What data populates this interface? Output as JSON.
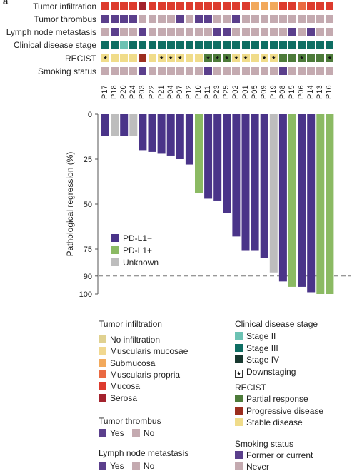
{
  "panel": {
    "letter": "a"
  },
  "colors": {
    "no_infiltration": "#e0d190",
    "muscularis_mucosae": "#f1d890",
    "submucosa": "#f2a95c",
    "muscularis_propria": "#ea6a42",
    "mucosa": "#dd3b2e",
    "serosa": "#a3222d",
    "yes": "#5b3f8c",
    "no": "#c4aab0",
    "stage_ii": "#6cc2b3",
    "stage_iii": "#0e6e63",
    "stage_iv": "#17382f",
    "partial_response": "#4d7b3a",
    "progressive_disease": "#9c2e1f",
    "stable_disease": "#f0dc8a",
    "former_or_current": "#5b3f8c",
    "never": "#c4aab0",
    "pdl1_neg": "#4a3489",
    "pdl1_pos": "#8bba63",
    "unknown": "#bdbdbd"
  },
  "heatmap": {
    "row_labels": [
      "Tumor infiltration",
      "Tumor thrombus",
      "Lymph node metastasis",
      "Clinical disease stage",
      "RECIST",
      "Smoking status"
    ],
    "patients": [
      "P17",
      "P18",
      "P20",
      "P24",
      "P03",
      "P22",
      "P21",
      "P04",
      "P07",
      "P12",
      "P10",
      "P11",
      "P23",
      "P25",
      "P02",
      "P01",
      "P05",
      "P09",
      "P19",
      "P08",
      "P15",
      "P06",
      "P14",
      "P13",
      "P16"
    ],
    "rows": [
      [
        "mucosa",
        "mucosa",
        "mucosa",
        "mucosa",
        "serosa",
        "mucosa",
        "mucosa",
        "mucosa",
        "mucosa",
        "mucosa",
        "mucosa",
        "mucosa",
        "mucosa",
        "mucosa",
        "mucosa",
        "mucosa",
        "submucosa",
        "submucosa",
        "submucosa",
        "mucosa",
        "mucosa",
        "muscularis_propria",
        "mucosa",
        "mucosa",
        "mucosa"
      ],
      [
        "yes",
        "yes",
        "yes",
        "yes",
        "no",
        "no",
        "no",
        "no",
        "yes",
        "no",
        "yes",
        "yes",
        "no",
        "no",
        "yes",
        "no",
        "no",
        "no",
        "no",
        "no",
        "no",
        "no",
        "no",
        "no",
        "no"
      ],
      [
        "no",
        "yes",
        "no",
        "no",
        "yes",
        "no",
        "no",
        "no",
        "no",
        "no",
        "no",
        "no",
        "yes",
        "yes",
        "no",
        "no",
        "no",
        "no",
        "no",
        "no",
        "yes",
        "no",
        "yes",
        "no",
        "no"
      ],
      [
        "stage_iii",
        "stage_iii",
        "stage_ii",
        "stage_iii",
        "stage_iii",
        "stage_iii",
        "stage_iii",
        "stage_iii",
        "stage_iii",
        "stage_iii",
        "stage_iii",
        "stage_iii",
        "stage_iii",
        "stage_iii",
        "stage_iii",
        "stage_iii",
        "stage_iii",
        "stage_iii",
        "stage_iii",
        "stage_iii",
        "stage_iii",
        "stage_iii",
        "stage_iii",
        "stage_iii",
        "stage_iii"
      ],
      [
        "stable_disease",
        "stable_disease",
        "stable_disease",
        "stable_disease",
        "progressive_disease",
        "stable_disease",
        "stable_disease",
        "stable_disease",
        "stable_disease",
        "stable_disease",
        "stable_disease",
        "partial_response",
        "partial_response",
        "partial_response",
        "stable_disease",
        "stable_disease",
        "stable_disease",
        "stable_disease",
        "stable_disease",
        "partial_response",
        "partial_response",
        "partial_response",
        "partial_response",
        "partial_response",
        "partial_response"
      ],
      [
        "no",
        "no",
        "no",
        "no",
        "former_or_current",
        "no",
        "no",
        "no",
        "no",
        "no",
        "no",
        "former_or_current",
        "no",
        "no",
        "no",
        "no",
        "no",
        "no",
        "no",
        "former_or_current",
        "no",
        "no",
        "no",
        "no",
        "no"
      ]
    ],
    "downstaging": [
      true,
      false,
      false,
      false,
      false,
      false,
      true,
      true,
      true,
      false,
      false,
      true,
      true,
      true,
      true,
      true,
      false,
      true,
      true,
      false,
      false,
      true,
      false,
      false,
      true
    ]
  },
  "chart_data": {
    "type": "bar",
    "categories": [
      "P17",
      "P18",
      "P20",
      "P24",
      "P03",
      "P22",
      "P21",
      "P04",
      "P07",
      "P12",
      "P10",
      "P11",
      "P23",
      "P25",
      "P02",
      "P01",
      "P05",
      "P09",
      "P19",
      "P08",
      "P15",
      "P06",
      "P14",
      "P13",
      "P16"
    ],
    "values": [
      12,
      12,
      12,
      12,
      20,
      21,
      22,
      23,
      25,
      28,
      44,
      47,
      48,
      55,
      68,
      76,
      76,
      80,
      88,
      93,
      96,
      96,
      99,
      100,
      100
    ],
    "pdl1": [
      "neg",
      "unknown",
      "neg",
      "unknown",
      "neg",
      "neg",
      "neg",
      "neg",
      "neg",
      "neg",
      "pos",
      "neg",
      "neg",
      "neg",
      "neg",
      "neg",
      "neg",
      "neg",
      "unknown",
      "neg",
      "pos",
      "neg",
      "neg",
      "pos",
      "pos"
    ],
    "ylabel": "Pathological regression (%)",
    "ylim": [
      0,
      100
    ],
    "yticks": [
      0,
      25,
      50,
      75,
      90,
      100
    ],
    "reference_line": 90,
    "y_inverted": true,
    "legend": [
      "PD-L1−",
      "PD-L1+",
      "Unknown"
    ],
    "legend_placement": "bottom-left"
  },
  "legend": {
    "tumor_infiltration": {
      "title": "Tumor infiltration",
      "items": [
        "No infiltration",
        "Muscularis mucosae",
        "Submucosa",
        "Muscularis propria",
        "Mucosa",
        "Serosa"
      ]
    },
    "tumor_thrombus": {
      "title": "Tumor thrombus",
      "yes": "Yes",
      "no": "No"
    },
    "lymph_node": {
      "title": "Lymph node metastasis",
      "yes": "Yes",
      "no": "No"
    },
    "clinical_stage": {
      "title": "Clinical disease stage",
      "items": [
        "Stage II",
        "Stage III",
        "Stage IV",
        "Downstaging"
      ]
    },
    "recist": {
      "title": "RECIST",
      "items": [
        "Partial response",
        "Progressive disease",
        "Stable disease"
      ]
    },
    "smoking": {
      "title": "Smoking status",
      "items": [
        "Former or current",
        "Never"
      ]
    }
  }
}
